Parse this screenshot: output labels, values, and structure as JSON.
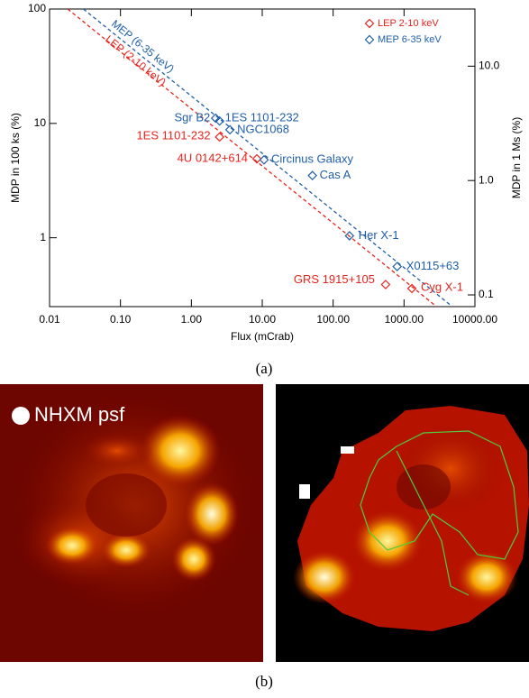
{
  "chart_data": {
    "type": "scatter",
    "xlabel": "Flux (mCrab)",
    "ylabel": "MDP in 100 ks (%)",
    "y2label": "MDP in 1 Ms (%)",
    "log_x": true,
    "log_y": true,
    "xlim": [
      0.01,
      10000
    ],
    "ylim": [
      0.25,
      100
    ],
    "y2lim": [
      0.079,
      31.6
    ],
    "xticks": [
      0.01,
      {
        "value": 0.1,
        "label": "0.10"
      },
      {
        "value": 1,
        "label": "1.00"
      },
      {
        "value": 10,
        "label": "10.00"
      },
      {
        "value": 100,
        "label": "100.00"
      },
      {
        "value": 1000,
        "label": "1000.00"
      },
      {
        "value": 10000,
        "label": "10000.00"
      }
    ],
    "yticks": [
      1,
      10,
      100
    ],
    "y2ticks": [
      0.1,
      {
        "value": 1,
        "label": "1.0"
      },
      {
        "value": 10,
        "label": "10.0"
      }
    ],
    "legend_loc": "upper right",
    "series": [
      {
        "name": "LEP 2-10 keV",
        "color": "#e8231c",
        "x": [
          2.5,
          8.4,
          550,
          1290
        ],
        "values": [
          7.6,
          4.9,
          0.39,
          0.36
        ],
        "labels": [
          "1ES 1101-232",
          "4U 0142+614",
          "GRS 1915+105",
          "Cyg X-1"
        ]
      },
      {
        "name": "MEP 6-35 keV",
        "color": "#1f5ea8",
        "x": [
          2.2,
          2.5,
          3.5,
          10.6,
          51,
          170,
          800
        ],
        "values": [
          11.1,
          10.5,
          8.8,
          4.8,
          3.5,
          1.04,
          0.56
        ],
        "labels": [
          "Sgr B2",
          "1ES 1101-232",
          "NGC1068",
          "Circinus Galaxy",
          "Cas A",
          "Her X-1",
          "X0115+63"
        ]
      }
    ],
    "lines": [
      {
        "name": "LEP (2-10 keV)",
        "color": "#e8231c",
        "x": [
          0.018,
          2880
        ],
        "values": [
          100,
          0.25
        ]
      },
      {
        "name": "MEP (6-35 keV)",
        "color": "#1f5ea8",
        "x": [
          0.03,
          4800
        ],
        "values": [
          100,
          0.25
        ]
      }
    ]
  },
  "captions": [
    "(a)",
    "(b)"
  ],
  "psf_label": "NHXM psf"
}
